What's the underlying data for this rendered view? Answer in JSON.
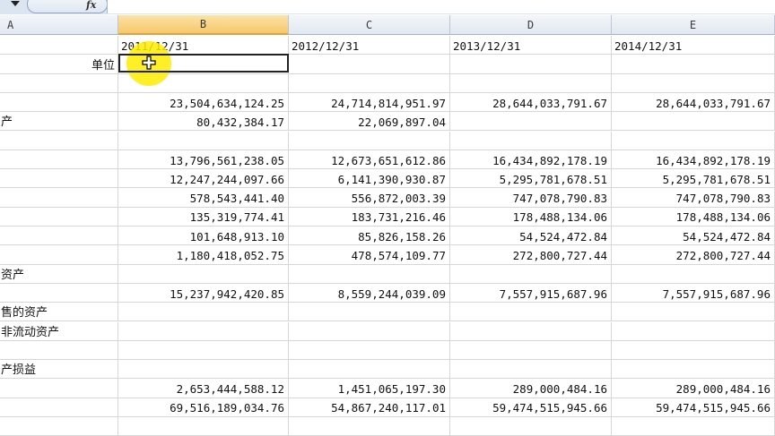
{
  "toolbar": {
    "fx_label": "fx"
  },
  "columns": [
    "A",
    "B",
    "C",
    "D",
    "E"
  ],
  "rows": [
    [
      "",
      "2011/12/31",
      "2012/12/31",
      "2013/12/31",
      "2014/12/31"
    ],
    [
      "单位",
      "",
      "",
      "",
      ""
    ],
    [
      "",
      "",
      "",
      "",
      ""
    ],
    [
      "",
      "23,504,634,124.25",
      "24,714,814,951.97",
      "28,644,033,791.67",
      "28,644,033,791.67"
    ],
    [
      "产",
      "80,432,384.17",
      "22,069,897.04",
      "",
      ""
    ],
    [
      "",
      "",
      "",
      "",
      ""
    ],
    [
      "",
      "13,796,561,238.05",
      "12,673,651,612.86",
      "16,434,892,178.19",
      "16,434,892,178.19"
    ],
    [
      "",
      "12,247,244,097.66",
      "6,141,390,930.87",
      "5,295,781,678.51",
      "5,295,781,678.51"
    ],
    [
      "",
      "578,543,441.40",
      "556,872,003.39",
      "747,078,790.83",
      "747,078,790.83"
    ],
    [
      "",
      "135,319,774.41",
      "183,731,216.46",
      "178,488,134.06",
      "178,488,134.06"
    ],
    [
      "",
      "101,648,913.10",
      "85,826,158.26",
      "54,524,472.84",
      "54,524,472.84"
    ],
    [
      "",
      "1,180,418,052.75",
      "478,574,109.77",
      "272,800,727.44",
      "272,800,727.44"
    ],
    [
      "资产",
      "",
      "",
      "",
      ""
    ],
    [
      "",
      "15,237,942,420.85",
      "8,559,244,039.09",
      "7,557,915,687.96",
      "7,557,915,687.96"
    ],
    [
      "售的资产",
      "",
      "",
      "",
      ""
    ],
    [
      "非流动资产",
      "",
      "",
      "",
      ""
    ],
    [
      "",
      "",
      "",
      "",
      ""
    ],
    [
      "产损益",
      "",
      "",
      "",
      ""
    ],
    [
      "",
      "2,653,444,588.12",
      "1,451,065,197.30",
      "289,000,484.16",
      "289,000,484.16"
    ],
    [
      "",
      "69,516,189,034.76",
      "54,867,240,117.01",
      "59,474,515,945.66",
      "59,474,515,945.66"
    ],
    [
      "",
      "",
      "",
      "",
      ""
    ]
  ],
  "selection": {
    "active_column": "B",
    "active_row": 2
  },
  "colors": {
    "selected_header": "#f6c86a",
    "cursor_highlight": "#ffec00"
  }
}
